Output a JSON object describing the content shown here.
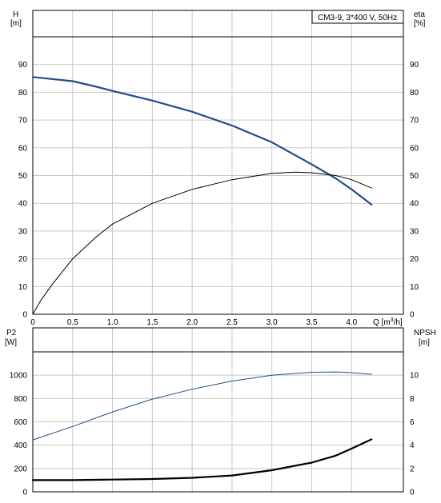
{
  "chart_data": [
    {
      "type": "line",
      "title": "CM3-9, 3*400 V, 50Hz",
      "xlabel": "Q [m³/h]",
      "xlabel_parts": [
        "Q [m",
        "3",
        "/h]"
      ],
      "ylabel": [
        "H",
        "[m]"
      ],
      "ylabel_right": [
        "eta",
        "[%]"
      ],
      "xlim": [
        0,
        4.65
      ],
      "ylim": [
        0,
        100
      ],
      "ylim_right": [
        0,
        100
      ],
      "x_ticks": [
        "0",
        "0.5",
        "1.0",
        "1.5",
        "2.0",
        "2.5",
        "3.0",
        "3.5",
        "4.0"
      ],
      "x_tick_values": [
        0,
        0.5,
        1,
        1.5,
        2,
        2.5,
        3,
        3.5,
        4
      ],
      "y_ticks": [
        "0",
        "10",
        "20",
        "30",
        "40",
        "50",
        "60",
        "70",
        "80",
        "90"
      ],
      "y_tick_values": [
        0,
        10,
        20,
        30,
        40,
        50,
        60,
        70,
        80,
        90
      ],
      "y_ticks_right": [
        "0",
        "10",
        "20",
        "30",
        "40",
        "50",
        "60",
        "70",
        "80",
        "90"
      ],
      "grid": true,
      "series": [
        {
          "axis": "left",
          "color": "#1f4e8c",
          "x": [
            0,
            0.5,
            0.8,
            1.0,
            1.5,
            2.0,
            2.5,
            3.0,
            3.5,
            3.8,
            4.0,
            4.25
          ],
          "y": [
            85.5,
            84,
            82,
            80.5,
            77,
            73,
            68,
            62,
            54,
            49,
            45,
            39.5
          ]
        },
        {
          "axis": "right",
          "color": "#000000",
          "x": [
            0,
            0.1,
            0.25,
            0.5,
            0.8,
            1.0,
            1.5,
            2.0,
            2.5,
            3.0,
            3.3,
            3.5,
            3.8,
            4.0,
            4.25
          ],
          "y": [
            0,
            5,
            11,
            20,
            28,
            32.5,
            40,
            45,
            48.5,
            50.8,
            51.2,
            51,
            50,
            48.5,
            45.5
          ]
        }
      ]
    },
    {
      "type": "line",
      "xlabel": "",
      "ylabel": [
        "P2",
        "[W]"
      ],
      "ylabel_right": [
        "NPSH",
        "[m]"
      ],
      "xlim": [
        0,
        4.65
      ],
      "ylim": [
        0,
        1200
      ],
      "ylim_right": [
        0,
        12
      ],
      "x_tick_values": [
        0,
        0.5,
        1,
        1.5,
        2,
        2.5,
        3,
        3.5,
        4
      ],
      "y_ticks": [
        "0",
        "200",
        "400",
        "600",
        "800",
        "1000"
      ],
      "y_tick_values": [
        0,
        200,
        400,
        600,
        800,
        1000
      ],
      "y_ticks_right": [
        "0",
        "2",
        "4",
        "6",
        "8",
        "10"
      ],
      "grid": true,
      "series": [
        {
          "axis": "left",
          "color": "#1f4e8c",
          "x": [
            0,
            0.5,
            1.0,
            1.5,
            2.0,
            2.5,
            3.0,
            3.5,
            3.8,
            4.0,
            4.25
          ],
          "y": [
            445,
            560,
            685,
            795,
            880,
            950,
            1000,
            1025,
            1028,
            1022,
            1008
          ]
        },
        {
          "axis": "right",
          "color": "#000000",
          "x": [
            0,
            0.5,
            1.0,
            1.5,
            2.0,
            2.5,
            3.0,
            3.5,
            3.8,
            4.0,
            4.25
          ],
          "y": [
            1.0,
            1.0,
            1.05,
            1.1,
            1.2,
            1.4,
            1.85,
            2.5,
            3.1,
            3.7,
            4.5
          ]
        }
      ]
    }
  ]
}
